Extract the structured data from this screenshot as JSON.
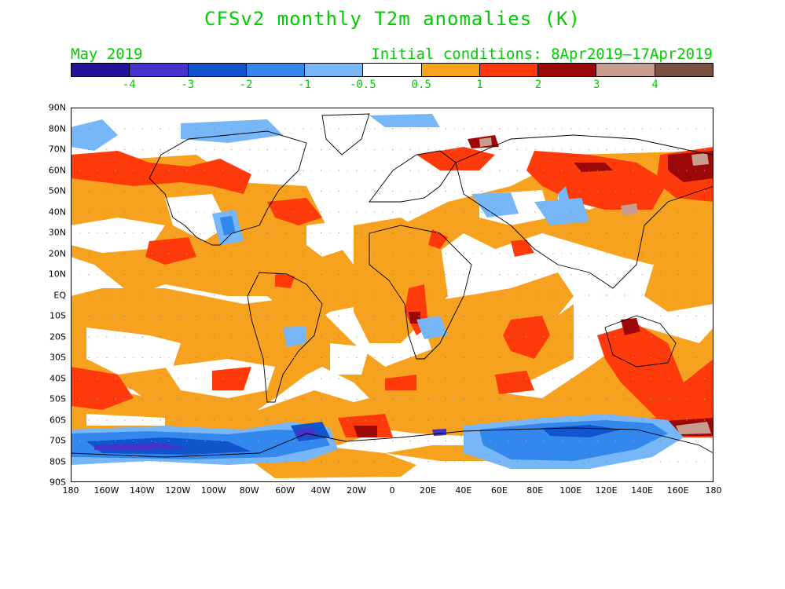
{
  "title": "CFSv2 monthly T2m anomalies (K)",
  "subtitle_left": "May 2019",
  "subtitle_right": "Initial conditions: 8Apr2019–17Apr2019",
  "colorbar": {
    "colors": [
      "#22119a",
      "#4433cc",
      "#1155cc",
      "#3388ee",
      "#77b6f7",
      "#ffffff",
      "#f7a21e",
      "#ff3a0a",
      "#9c0808",
      "#c89c8e",
      "#7a5040"
    ],
    "tick_labels": [
      "-4",
      "-3",
      "-2",
      "-1",
      "-0.5",
      "0.5",
      "1",
      "2",
      "3",
      "4"
    ]
  },
  "axes": {
    "lat_labels": [
      "90N",
      "80N",
      "70N",
      "60N",
      "50N",
      "40N",
      "30N",
      "20N",
      "10N",
      "EQ",
      "10S",
      "20S",
      "30S",
      "40S",
      "50S",
      "60S",
      "70S",
      "80S",
      "90S"
    ],
    "lon_labels": [
      "180",
      "160W",
      "140W",
      "120W",
      "100W",
      "80W",
      "60W",
      "40W",
      "20W",
      "0",
      "20E",
      "40E",
      "60E",
      "80E",
      "100E",
      "120E",
      "140E",
      "160E",
      "180"
    ]
  },
  "legend_colors": {
    "warm_0_5": "#f7a21e",
    "warm_1": "#ff3a0a",
    "warm_2": "#9c0808",
    "warm_3": "#c89c8e",
    "cool_0_5": "#77b6f7",
    "cool_1": "#3388ee",
    "cool_2": "#1155cc",
    "cool_3": "#4433cc"
  }
}
